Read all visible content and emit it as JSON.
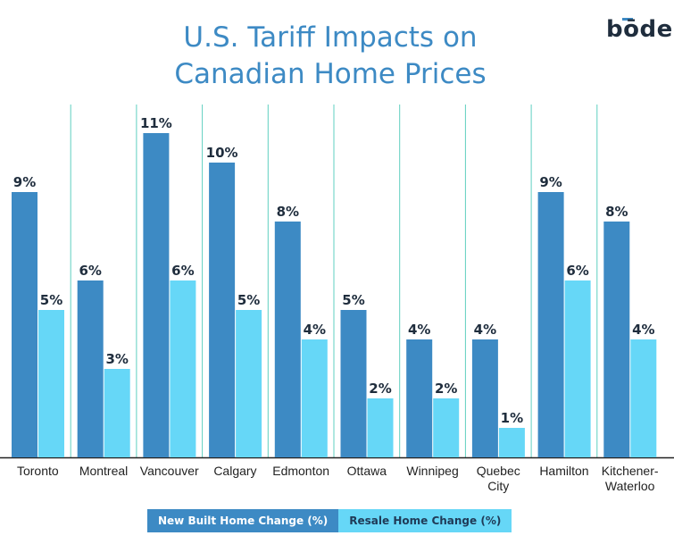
{
  "title": "U.S. Tariff Impacts on Canadian Home Prices",
  "title_lines": [
    "U.S. Tariff Impacts on",
    "Canadian Home Prices"
  ],
  "brand": "bōde",
  "colors": {
    "new_built": "#3d8ac4",
    "resale": "#66d7f7",
    "divider": "#5fcfc0",
    "label": "#1f2d3d"
  },
  "chart_data": {
    "type": "bar",
    "title": "U.S. Tariff Impacts on Canadian Home Prices",
    "categories": [
      "Toronto",
      "Montreal",
      "Vancouver",
      "Calgary",
      "Edmonton",
      "Ottawa",
      "Winnipeg",
      "Quebec City",
      "Hamilton",
      "Kitchener-Waterloo"
    ],
    "category_lines": [
      [
        "Toronto"
      ],
      [
        "Montreal"
      ],
      [
        "Vancouver"
      ],
      [
        "Calgary"
      ],
      [
        "Edmonton"
      ],
      [
        "Ottawa"
      ],
      [
        "Winnipeg"
      ],
      [
        "Quebec",
        "City"
      ],
      [
        "Hamilton"
      ],
      [
        "Kitchener-",
        "Waterloo"
      ]
    ],
    "series": [
      {
        "name": "New Built Home Change (%)",
        "values": [
          9,
          6,
          11,
          10,
          8,
          5,
          4,
          4,
          9,
          8
        ],
        "labels": [
          "9%",
          "6%",
          "11%",
          "10%",
          "8%",
          "5%",
          "4%",
          "4%",
          "9%",
          "8%"
        ]
      },
      {
        "name": "Resale Home Change (%)",
        "values": [
          5,
          3,
          6,
          5,
          4,
          2,
          2,
          1,
          6,
          4
        ],
        "labels": [
          "5%",
          "3%",
          "6%",
          "5%",
          "4%",
          "2%",
          "2%",
          "1%",
          "6%",
          "4%"
        ]
      }
    ],
    "ylim": [
      0,
      12
    ],
    "grid": false,
    "legend": "bottom"
  }
}
